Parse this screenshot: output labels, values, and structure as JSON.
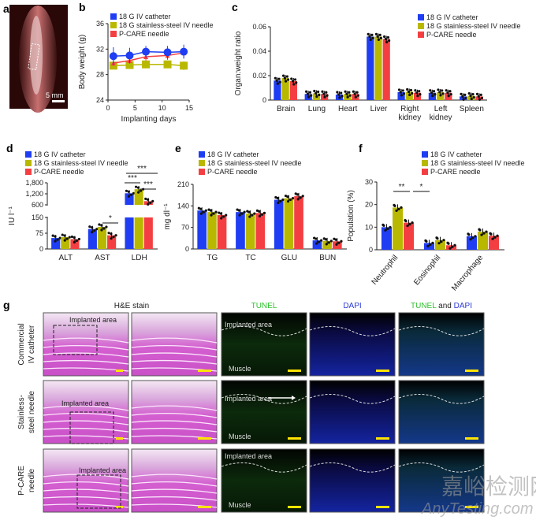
{
  "colors": {
    "catheter": "#1f3df2",
    "steel": "#b9b800",
    "pcare": "#f43f42"
  },
  "legend": [
    "18 G IV catheter",
    "18 G stainless-steel IV needle",
    "P-CARE needle"
  ],
  "panel_labels": {
    "a": "a",
    "b": "b",
    "c": "c",
    "d": "d",
    "e": "e",
    "f": "f",
    "g": "g"
  },
  "panel_a": {
    "scale_bar": "5 mm"
  },
  "chart_data": [
    {
      "id": "b",
      "type": "line",
      "xlabel": "Implanting days",
      "ylabel": "Body weight (g)",
      "xlim": [
        0,
        15
      ],
      "ylim": [
        24,
        36
      ],
      "xticks": [
        "0",
        "5",
        "10",
        "15"
      ],
      "yticks": [
        "24",
        "28",
        "32",
        "36"
      ],
      "x": [
        1,
        4,
        7,
        11,
        14
      ],
      "series": [
        {
          "name": "18 G IV catheter",
          "values": [
            30.9,
            31.0,
            31.6,
            31.5,
            31.6
          ],
          "err": [
            1.4,
            1.2,
            0.9,
            1.0,
            1.1
          ]
        },
        {
          "name": "18 G stainless-steel IV needle",
          "values": [
            29.4,
            29.5,
            29.6,
            29.6,
            29.4
          ],
          "err": [
            0.5,
            0.5,
            0.6,
            0.5,
            0.7
          ]
        },
        {
          "name": "P-CARE needle",
          "values": [
            29.8,
            30.2,
            30.8,
            31.0,
            31.4
          ],
          "err": [
            0.4,
            0.5,
            0.6,
            0.7,
            0.8
          ]
        }
      ]
    },
    {
      "id": "c",
      "type": "bar",
      "ylabel": "Organ:weight ratio",
      "ylim": [
        0,
        0.06
      ],
      "yticks": [
        "0",
        "0.02",
        "0.04",
        "0.06"
      ],
      "categories": [
        "Brain",
        "Lung",
        "Heart",
        "Liver",
        "Right|kidney",
        "Left|kidney",
        "Spleen"
      ],
      "series": [
        {
          "name": "18 G IV catheter",
          "values": [
            0.016,
            0.005,
            0.0045,
            0.052,
            0.0065,
            0.006,
            0.003
          ]
        },
        {
          "name": "18 G stainless-steel IV needle",
          "values": [
            0.018,
            0.0055,
            0.005,
            0.052,
            0.0068,
            0.0065,
            0.0035
          ]
        },
        {
          "name": "P-CARE needle",
          "values": [
            0.0155,
            0.005,
            0.005,
            0.05,
            0.006,
            0.006,
            0.003
          ]
        }
      ]
    },
    {
      "id": "d",
      "type": "bar",
      "ylabel": "IU l⁻¹",
      "ylim": [
        0,
        1800
      ],
      "axis_break": [
        150,
        600
      ],
      "yticks": [
        "0",
        "75",
        "150",
        "600",
        "1,200",
        "1,800"
      ],
      "categories": [
        "ALT",
        "AST",
        "LDH"
      ],
      "series": [
        {
          "name": "18 G IV catheter",
          "values": [
            52,
            95,
            1230
          ]
        },
        {
          "name": "18 G stainless-steel IV needle",
          "values": [
            56,
            105,
            1450
          ]
        },
        {
          "name": "P-CARE needle",
          "values": [
            47,
            65,
            800
          ]
        }
      ],
      "significance": [
        "*",
        "***",
        "***",
        "***"
      ]
    },
    {
      "id": "e",
      "type": "bar",
      "ylabel": "mg dl⁻¹",
      "ylim": [
        0,
        210
      ],
      "yticks": [
        "0",
        "70",
        "140",
        "210"
      ],
      "categories": [
        "TG",
        "TC",
        "GLU",
        "BUN"
      ],
      "series": [
        {
          "name": "18 G IV catheter",
          "values": [
            125,
            120,
            160,
            28
          ]
        },
        {
          "name": "18 G stainless-steel IV needle",
          "values": [
            120,
            115,
            165,
            26
          ]
        },
        {
          "name": "P-CARE needle",
          "values": [
            110,
            117,
            172,
            25
          ]
        }
      ]
    },
    {
      "id": "f",
      "type": "bar",
      "ylabel": "Population (%)",
      "ylim": [
        0,
        30
      ],
      "yticks": [
        "0",
        "10",
        "20",
        "30"
      ],
      "categories": [
        "Neutrophil",
        "Eosinophil",
        "Macrophage"
      ],
      "series": [
        {
          "name": "18 G IV catheter",
          "values": [
            10,
            3,
            6
          ]
        },
        {
          "name": "18 G stainless-steel IV needle",
          "values": [
            18.7,
            4.3,
            8
          ]
        },
        {
          "name": "P-CARE needle",
          "values": [
            12,
            2,
            6.2
          ]
        }
      ],
      "significance": [
        "**",
        "*"
      ]
    }
  ],
  "panel_g": {
    "headers": {
      "he": "H&E stain",
      "tunel": "TUNEL",
      "dapi": "DAPI",
      "merge_a": "TUNEL",
      "merge_and": " and ",
      "merge_b": "DAPI"
    },
    "rows": [
      "Commercial|IV catheter",
      "Stainless-|steel needle",
      "P-CARE|needle"
    ],
    "implanted": "Implanted area",
    "muscle": "Muscle"
  },
  "watermark": {
    "cn": "嘉峪检测网",
    "en": "AnyTesting.com"
  }
}
